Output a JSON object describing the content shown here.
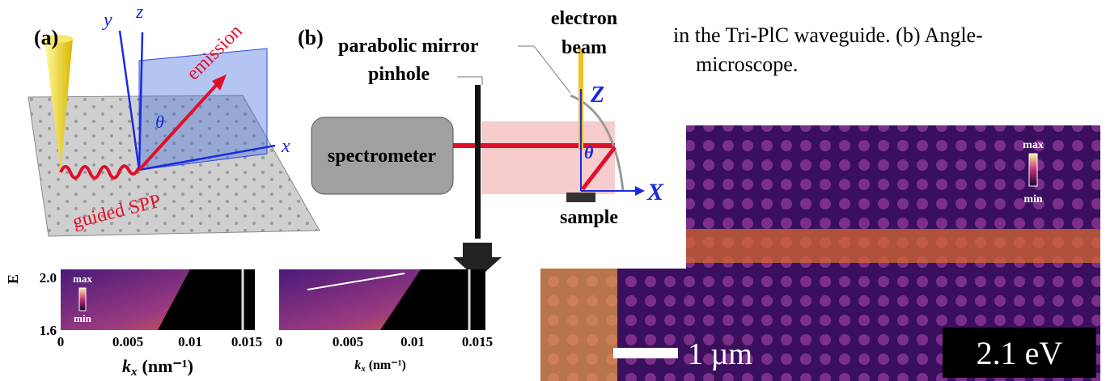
{
  "text_lines": [
    "in the Tri-PlC waveguide. (b) Angle-",
    "microscope."
  ],
  "panel_a": {
    "label": "(a)",
    "axis_y": "y",
    "axis_z": "z",
    "axis_x": "x",
    "emission": "emission",
    "theta": "θ",
    "guided_spp": "guided SPP"
  },
  "panel_b": {
    "label": "(b)",
    "parabolic_mirror": "parabolic mirror",
    "pinhole": "pinhole",
    "electron_beam": [
      "electron",
      "beam"
    ],
    "axis_z": "Z",
    "axis_x": "X",
    "theta": "θ",
    "spectrometer": "spectrometer",
    "sample": "sample"
  },
  "spectra": [
    {
      "y_label": "E",
      "y_ticks": [
        "2.0",
        "1.6"
      ],
      "x_ticks": [
        "0",
        "0.005",
        "0.01",
        "0.015"
      ],
      "x_label": {
        "k": "k",
        "sub": "x",
        "unit": "(nm⁻¹)"
      },
      "colorbar": {
        "max": "max",
        "min": "min"
      }
    },
    {
      "x_ticks": [
        "0",
        "0.005",
        "0.01",
        "0.015"
      ],
      "x_label": {
        "k": "k",
        "sub": "x",
        "unit": "(nm⁻¹)"
      }
    }
  ],
  "map": {
    "colorbar": {
      "max": "max",
      "min": "min"
    },
    "scale_bar": "1 µm",
    "energy": "2.1 eV"
  }
}
